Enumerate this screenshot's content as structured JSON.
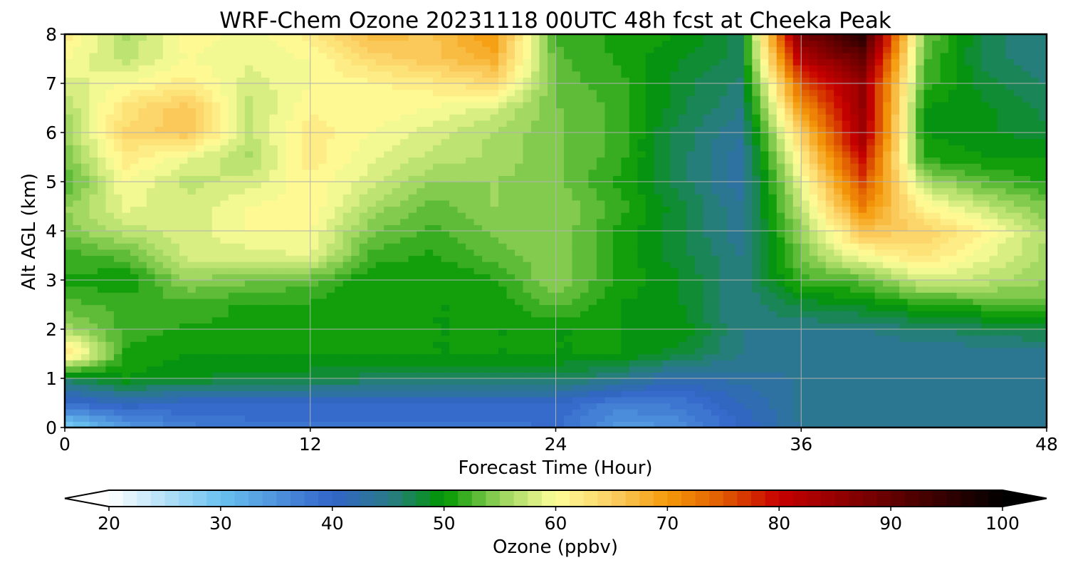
{
  "chart_data": {
    "type": "heatmap",
    "title": "WRF-Chem Ozone  20231118 00UTC 48h fcst at Cheeka Peak",
    "xlabel": "Forecast Time (Hour)",
    "ylabel": "Alt AGL (km)",
    "xlim": [
      0,
      48
    ],
    "ylim": [
      0,
      8
    ],
    "x_ticks": [
      "0",
      "12",
      "24",
      "36",
      "48"
    ],
    "y_ticks": [
      "0",
      "1",
      "2",
      "3",
      "4",
      "5",
      "6",
      "7",
      "8"
    ],
    "grid": true,
    "x": [
      0,
      3,
      6,
      9,
      12,
      15,
      18,
      21,
      24,
      27,
      30,
      33,
      36,
      39,
      42,
      45,
      48
    ],
    "y": [
      0,
      0.5,
      1,
      1.5,
      2,
      2.5,
      3,
      3.5,
      4,
      4.5,
      5,
      5.5,
      6,
      6.5,
      7,
      7.5,
      8
    ],
    "z": [
      [
        28,
        34,
        37,
        38,
        38,
        38,
        38,
        38,
        39,
        34,
        35,
        40,
        44,
        44,
        44,
        44,
        44
      ],
      [
        39,
        41,
        40,
        40,
        40,
        40,
        40,
        40,
        40,
        37,
        38,
        41,
        44,
        44,
        44,
        44,
        44
      ],
      [
        47,
        50,
        49,
        48,
        48,
        47,
        47,
        47,
        47,
        45,
        42,
        43,
        44,
        44,
        44,
        44,
        44
      ],
      [
        64,
        51,
        50,
        50,
        50,
        50,
        50,
        50,
        50,
        50,
        48,
        45,
        44,
        44,
        44,
        44,
        44
      ],
      [
        56,
        52,
        51,
        51,
        51,
        50,
        50,
        50,
        50,
        50,
        50,
        45,
        45,
        45,
        46,
        47,
        48
      ],
      [
        53,
        52,
        52,
        51,
        51,
        50,
        50,
        50,
        53,
        50,
        49,
        45,
        48,
        49,
        51,
        52,
        53
      ],
      [
        51,
        50,
        55,
        54,
        53,
        50,
        50,
        51,
        55,
        51,
        49,
        45,
        52,
        53,
        58,
        57,
        55
      ],
      [
        52,
        53,
        58,
        58,
        59,
        52,
        51,
        53,
        55,
        51,
        48,
        45,
        54,
        60,
        63,
        59,
        56
      ],
      [
        54,
        57,
        58,
        60,
        60,
        54,
        52,
        54,
        55,
        51,
        48,
        44,
        55,
        66,
        65,
        61,
        56
      ],
      [
        55,
        59,
        58,
        60,
        61,
        56,
        53,
        55,
        55,
        52,
        48,
        44,
        57,
        72,
        61,
        57,
        54
      ],
      [
        52,
        60,
        57,
        58,
        61,
        58,
        55,
        55,
        54,
        51,
        47,
        43,
        59,
        76,
        56,
        53,
        51
      ],
      [
        54,
        62,
        59,
        56,
        62,
        59,
        57,
        56,
        54,
        52,
        47,
        43,
        62,
        80,
        51,
        50,
        50
      ],
      [
        55,
        64,
        66,
        57,
        62,
        60,
        58,
        56,
        54,
        52,
        47,
        44,
        65,
        84,
        50,
        49,
        48
      ],
      [
        56,
        63,
        66,
        57,
        61,
        61,
        60,
        58,
        54,
        52,
        48,
        45,
        70,
        85,
        50,
        49,
        47
      ],
      [
        58,
        60,
        62,
        58,
        60,
        61,
        62,
        64,
        53,
        52,
        48,
        46,
        75,
        85,
        52,
        48,
        46
      ],
      [
        60,
        57,
        60,
        59,
        60,
        64,
        66,
        68,
        53,
        51,
        49,
        47,
        82,
        90,
        53,
        47,
        45
      ],
      [
        62,
        56,
        61,
        59,
        62,
        67,
        66,
        70,
        52,
        51,
        50,
        47,
        88,
        96,
        54,
        47,
        45
      ]
    ],
    "colorbar": {
      "label": "Ozone  (ppbv)",
      "min": 20,
      "max": 100,
      "extend": "both",
      "tick_labels": [
        "20",
        "30",
        "40",
        "50",
        "60",
        "70",
        "80",
        "90",
        "100"
      ],
      "colors": [
        {
          "v": 20,
          "c": "#ffffff"
        },
        {
          "v": 30,
          "c": "#6bc2f1"
        },
        {
          "v": 40,
          "c": "#3264c8"
        },
        {
          "v": 45,
          "c": "#2a7a8a"
        },
        {
          "v": 50,
          "c": "#009600"
        },
        {
          "v": 55,
          "c": "#96d25a"
        },
        {
          "v": 60,
          "c": "#ffff9a"
        },
        {
          "v": 65,
          "c": "#fbd064"
        },
        {
          "v": 70,
          "c": "#f59a0a"
        },
        {
          "v": 75,
          "c": "#e05a00"
        },
        {
          "v": 80,
          "c": "#c80000"
        },
        {
          "v": 90,
          "c": "#640000"
        },
        {
          "v": 100,
          "c": "#000000"
        }
      ]
    }
  }
}
